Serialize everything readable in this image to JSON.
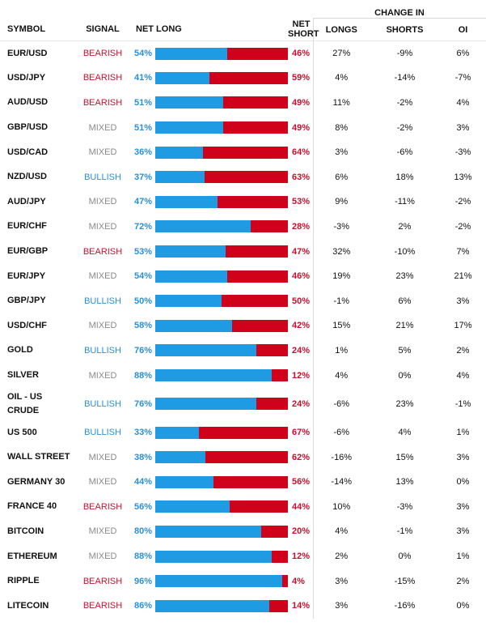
{
  "header": {
    "change_in": "CHANGE IN",
    "symbol": "SYMBOL",
    "signal": "SIGNAL",
    "net_long": "NET LONG",
    "net_short": "NET SHORT",
    "longs": "LONGS",
    "shorts": "SHORTS",
    "oi": "OI"
  },
  "colors": {
    "long": "#1e9be3",
    "short": "#d0021b",
    "bearish": "#c8102e",
    "bullish": "#2a8fd8",
    "mixed": "#8a8a8a"
  },
  "rows": [
    {
      "symbol": "EUR/USD",
      "signal": "BEARISH",
      "net_long": 54,
      "net_long_label": "54%",
      "net_short_label": "46%",
      "longs": "27%",
      "shorts": "-9%",
      "oi": "6%"
    },
    {
      "symbol": "USD/JPY",
      "signal": "BEARISH",
      "net_long": 41,
      "net_long_label": "41%",
      "net_short_label": "59%",
      "longs": "4%",
      "shorts": "-14%",
      "oi": "-7%"
    },
    {
      "symbol": "AUD/USD",
      "signal": "BEARISH",
      "net_long": 51,
      "net_long_label": "51%",
      "net_short_label": "49%",
      "longs": "11%",
      "shorts": "-2%",
      "oi": "4%"
    },
    {
      "symbol": "GBP/USD",
      "signal": "MIXED",
      "net_long": 51,
      "net_long_label": "51%",
      "net_short_label": "49%",
      "longs": "8%",
      "shorts": "-2%",
      "oi": "3%"
    },
    {
      "symbol": "USD/CAD",
      "signal": "MIXED",
      "net_long": 36,
      "net_long_label": "36%",
      "net_short_label": "64%",
      "longs": "3%",
      "shorts": "-6%",
      "oi": "-3%"
    },
    {
      "symbol": "NZD/USD",
      "signal": "BULLISH",
      "net_long": 37,
      "net_long_label": "37%",
      "net_short_label": "63%",
      "longs": "6%",
      "shorts": "18%",
      "oi": "13%"
    },
    {
      "symbol": "AUD/JPY",
      "signal": "MIXED",
      "net_long": 47,
      "net_long_label": "47%",
      "net_short_label": "53%",
      "longs": "9%",
      "shorts": "-11%",
      "oi": "-2%"
    },
    {
      "symbol": "EUR/CHF",
      "signal": "MIXED",
      "net_long": 72,
      "net_long_label": "72%",
      "net_short_label": "28%",
      "longs": "-3%",
      "shorts": "2%",
      "oi": "-2%"
    },
    {
      "symbol": "EUR/GBP",
      "signal": "BEARISH",
      "net_long": 53,
      "net_long_label": "53%",
      "net_short_label": "47%",
      "longs": "32%",
      "shorts": "-10%",
      "oi": "7%"
    },
    {
      "symbol": "EUR/JPY",
      "signal": "MIXED",
      "net_long": 54,
      "net_long_label": "54%",
      "net_short_label": "46%",
      "longs": "19%",
      "shorts": "23%",
      "oi": "21%"
    },
    {
      "symbol": "GBP/JPY",
      "signal": "BULLISH",
      "net_long": 50,
      "net_long_label": "50%",
      "net_short_label": "50%",
      "longs": "-1%",
      "shorts": "6%",
      "oi": "3%"
    },
    {
      "symbol": "USD/CHF",
      "signal": "MIXED",
      "net_long": 58,
      "net_long_label": "58%",
      "net_short_label": "42%",
      "longs": "15%",
      "shorts": "21%",
      "oi": "17%"
    },
    {
      "symbol": "GOLD",
      "signal": "BULLISH",
      "net_long": 76,
      "net_long_label": "76%",
      "net_short_label": "24%",
      "longs": "1%",
      "shorts": "5%",
      "oi": "2%"
    },
    {
      "symbol": "SILVER",
      "signal": "MIXED",
      "net_long": 88,
      "net_long_label": "88%",
      "net_short_label": "12%",
      "longs": "4%",
      "shorts": "0%",
      "oi": "4%"
    },
    {
      "symbol": "OIL - US CRUDE",
      "signal": "BULLISH",
      "net_long": 76,
      "net_long_label": "76%",
      "net_short_label": "24%",
      "longs": "-6%",
      "shorts": "23%",
      "oi": "-1%"
    },
    {
      "symbol": "US 500",
      "signal": "BULLISH",
      "net_long": 33,
      "net_long_label": "33%",
      "net_short_label": "67%",
      "longs": "-6%",
      "shorts": "4%",
      "oi": "1%"
    },
    {
      "symbol": "WALL STREET",
      "signal": "MIXED",
      "net_long": 38,
      "net_long_label": "38%",
      "net_short_label": "62%",
      "longs": "-16%",
      "shorts": "15%",
      "oi": "3%"
    },
    {
      "symbol": "GERMANY 30",
      "signal": "MIXED",
      "net_long": 44,
      "net_long_label": "44%",
      "net_short_label": "56%",
      "longs": "-14%",
      "shorts": "13%",
      "oi": "0%"
    },
    {
      "symbol": "FRANCE 40",
      "signal": "BEARISH",
      "net_long": 56,
      "net_long_label": "56%",
      "net_short_label": "44%",
      "longs": "10%",
      "shorts": "-3%",
      "oi": "3%"
    },
    {
      "symbol": "BITCOIN",
      "signal": "MIXED",
      "net_long": 80,
      "net_long_label": "80%",
      "net_short_label": "20%",
      "longs": "4%",
      "shorts": "-1%",
      "oi": "3%"
    },
    {
      "symbol": "ETHEREUM",
      "signal": "MIXED",
      "net_long": 88,
      "net_long_label": "88%",
      "net_short_label": "12%",
      "longs": "2%",
      "shorts": "0%",
      "oi": "1%"
    },
    {
      "symbol": "RIPPLE",
      "signal": "BEARISH",
      "net_long": 96,
      "net_long_label": "96%",
      "net_short_label": "4%",
      "longs": "3%",
      "shorts": "-15%",
      "oi": "2%"
    },
    {
      "symbol": "LITECOIN",
      "signal": "BEARISH",
      "net_long": 86,
      "net_long_label": "86%",
      "net_short_label": "14%",
      "longs": "3%",
      "shorts": "-16%",
      "oi": "0%"
    }
  ]
}
